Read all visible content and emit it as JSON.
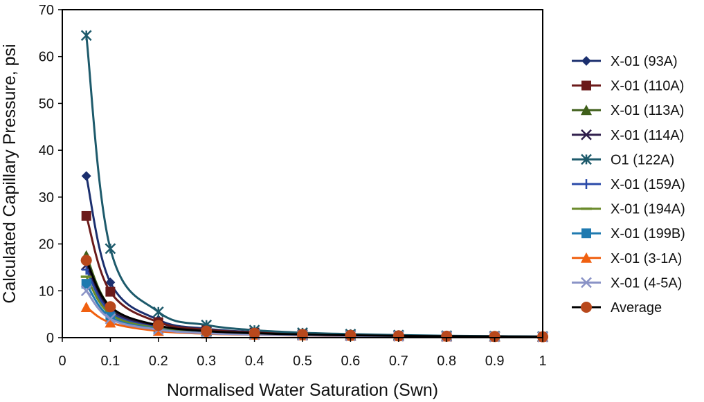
{
  "chart_data": {
    "type": "line",
    "title": "",
    "xlabel": "Normalised Water Saturation (Swn)",
    "ylabel": "Calculated Capillary Pressure, psi",
    "xlim": [
      0,
      1
    ],
    "ylim": [
      0,
      70
    ],
    "x_ticks": [
      0,
      0.1,
      0.2,
      0.3,
      0.4,
      0.5,
      0.6,
      0.7,
      0.8,
      0.9,
      1
    ],
    "x_tick_labels": [
      "0",
      "0.1",
      "0.2",
      "0.3",
      "0.4",
      "0.5",
      "0.6",
      "0.7",
      "0.8",
      "0.9",
      "1"
    ],
    "y_ticks": [
      0,
      10,
      20,
      30,
      40,
      50,
      60,
      70
    ],
    "y_tick_labels": [
      "0",
      "10",
      "20",
      "30",
      "40",
      "50",
      "60",
      "70"
    ],
    "x": [
      0.05,
      0.1,
      0.2,
      0.3,
      0.4,
      0.5,
      0.6,
      0.7,
      0.8,
      0.9,
      1.0
    ],
    "legend_position": "right",
    "series": [
      {
        "name": "X-01 (93A)",
        "color": "#1b2f6e",
        "marker": "diamond",
        "values": [
          34.5,
          11.8,
          3.8,
          1.9,
          1.2,
          0.8,
          0.6,
          0.45,
          0.35,
          0.28,
          0.22
        ]
      },
      {
        "name": "X-01 (110A)",
        "color": "#6b1a1a",
        "marker": "square",
        "values": [
          26.0,
          9.8,
          3.3,
          1.7,
          1.1,
          0.75,
          0.55,
          0.42,
          0.33,
          0.27,
          0.2
        ]
      },
      {
        "name": "X-01 (113A)",
        "color": "#3f5f1a",
        "marker": "triangle",
        "values": [
          17.5,
          6.6,
          2.5,
          1.4,
          0.9,
          0.65,
          0.48,
          0.38,
          0.3,
          0.24,
          0.18
        ]
      },
      {
        "name": "X-01 (114A)",
        "color": "#2e1d4a",
        "marker": "x",
        "values": [
          15.5,
          6.0,
          2.3,
          1.3,
          0.85,
          0.6,
          0.45,
          0.35,
          0.28,
          0.22,
          0.17
        ]
      },
      {
        "name": "O1 (122A)",
        "color": "#1d5a6b",
        "marker": "star",
        "values": [
          64.5,
          19.0,
          5.5,
          2.7,
          1.6,
          1.05,
          0.75,
          0.55,
          0.42,
          0.33,
          0.26
        ]
      },
      {
        "name": "X-01 (159A)",
        "color": "#2a4aa8",
        "marker": "plus",
        "values": [
          14.5,
          5.5,
          2.1,
          1.2,
          0.8,
          0.55,
          0.42,
          0.32,
          0.26,
          0.21,
          0.16
        ]
      },
      {
        "name": "X-01 (194A)",
        "color": "#6a8a2a",
        "marker": "dash",
        "values": [
          13.0,
          5.0,
          2.0,
          1.1,
          0.75,
          0.52,
          0.4,
          0.31,
          0.25,
          0.2,
          0.15
        ]
      },
      {
        "name": "X-01 (199B)",
        "color": "#1f7ab0",
        "marker": "square",
        "values": [
          11.5,
          4.4,
          1.8,
          1.0,
          0.7,
          0.5,
          0.38,
          0.3,
          0.24,
          0.19,
          0.15
        ]
      },
      {
        "name": "X-01 (3-1A)",
        "color": "#f06010",
        "marker": "triangle",
        "values": [
          6.5,
          3.2,
          1.4,
          0.85,
          0.6,
          0.45,
          0.35,
          0.28,
          0.22,
          0.18,
          0.14
        ]
      },
      {
        "name": "X-01 (4-5A)",
        "color": "#8a93c6",
        "marker": "x",
        "values": [
          10.0,
          4.0,
          1.7,
          0.95,
          0.65,
          0.48,
          0.37,
          0.29,
          0.23,
          0.19,
          0.15
        ]
      },
      {
        "name": "Average",
        "color": "#000000",
        "marker": "circle",
        "marker_color": "#b8481c",
        "values": [
          16.5,
          6.6,
          2.6,
          1.4,
          0.95,
          0.68,
          0.5,
          0.39,
          0.31,
          0.25,
          0.19
        ]
      }
    ]
  }
}
